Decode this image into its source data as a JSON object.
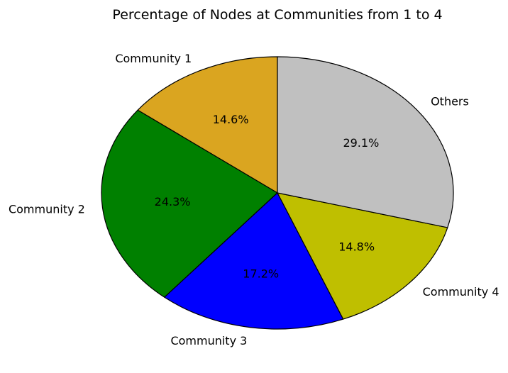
{
  "chart_data": {
    "type": "pie",
    "title": "Percentage of Nodes at Communities from 1 to 4",
    "categories": [
      "Community 1",
      "Community 2",
      "Community 3",
      "Community 4",
      "Others"
    ],
    "values": [
      14.6,
      24.3,
      17.2,
      14.8,
      29.1
    ],
    "value_labels": [
      "14.6%",
      "24.3%",
      "17.2%",
      "14.8%",
      "29.1%"
    ],
    "colors": [
      "#DAA520",
      "#008000",
      "#0000FF",
      "#BFBF00",
      "#C0C0C0"
    ],
    "edge_color": "#000000",
    "start_angle_deg": 90,
    "direction": "counterclockwise",
    "legend": "none"
  }
}
